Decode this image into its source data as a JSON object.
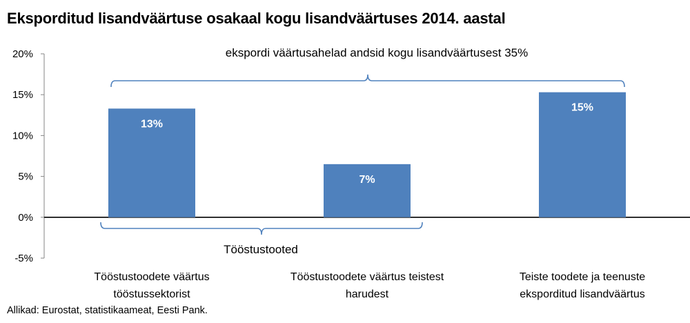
{
  "chart_data": {
    "type": "bar",
    "title": "Eksporditud lisandväärtuse osakaal kogu lisandväärtuses 2014. aastal",
    "categories": [
      [
        "Tööstustoodete väärtus",
        "tööstussektorist"
      ],
      [
        "Tööstustoodete väärtus teistest",
        "harudest"
      ],
      [
        "Teiste toodete ja teenuste",
        "eksporditud lisandväärtus"
      ]
    ],
    "values": [
      13.3,
      6.5,
      15.3
    ],
    "data_labels": [
      "13%",
      "7%",
      "15%"
    ],
    "ylim": [
      -5,
      20
    ],
    "yticks": [
      20,
      15,
      10,
      5,
      0,
      -5
    ],
    "ytick_labels": [
      "20%",
      "15%",
      "10%",
      "5%",
      "0%",
      "-5%"
    ],
    "bar_color": "#4f81bd",
    "grid": false,
    "annotations": {
      "top_bracket_label": "ekspordi väärtusahelad andsid kogu lisandväärtusest 35%",
      "bottom_bracket_label": "Tööstustooted"
    }
  },
  "source": "Allikad: Eurostat, statistikaameat, Eesti Pank."
}
